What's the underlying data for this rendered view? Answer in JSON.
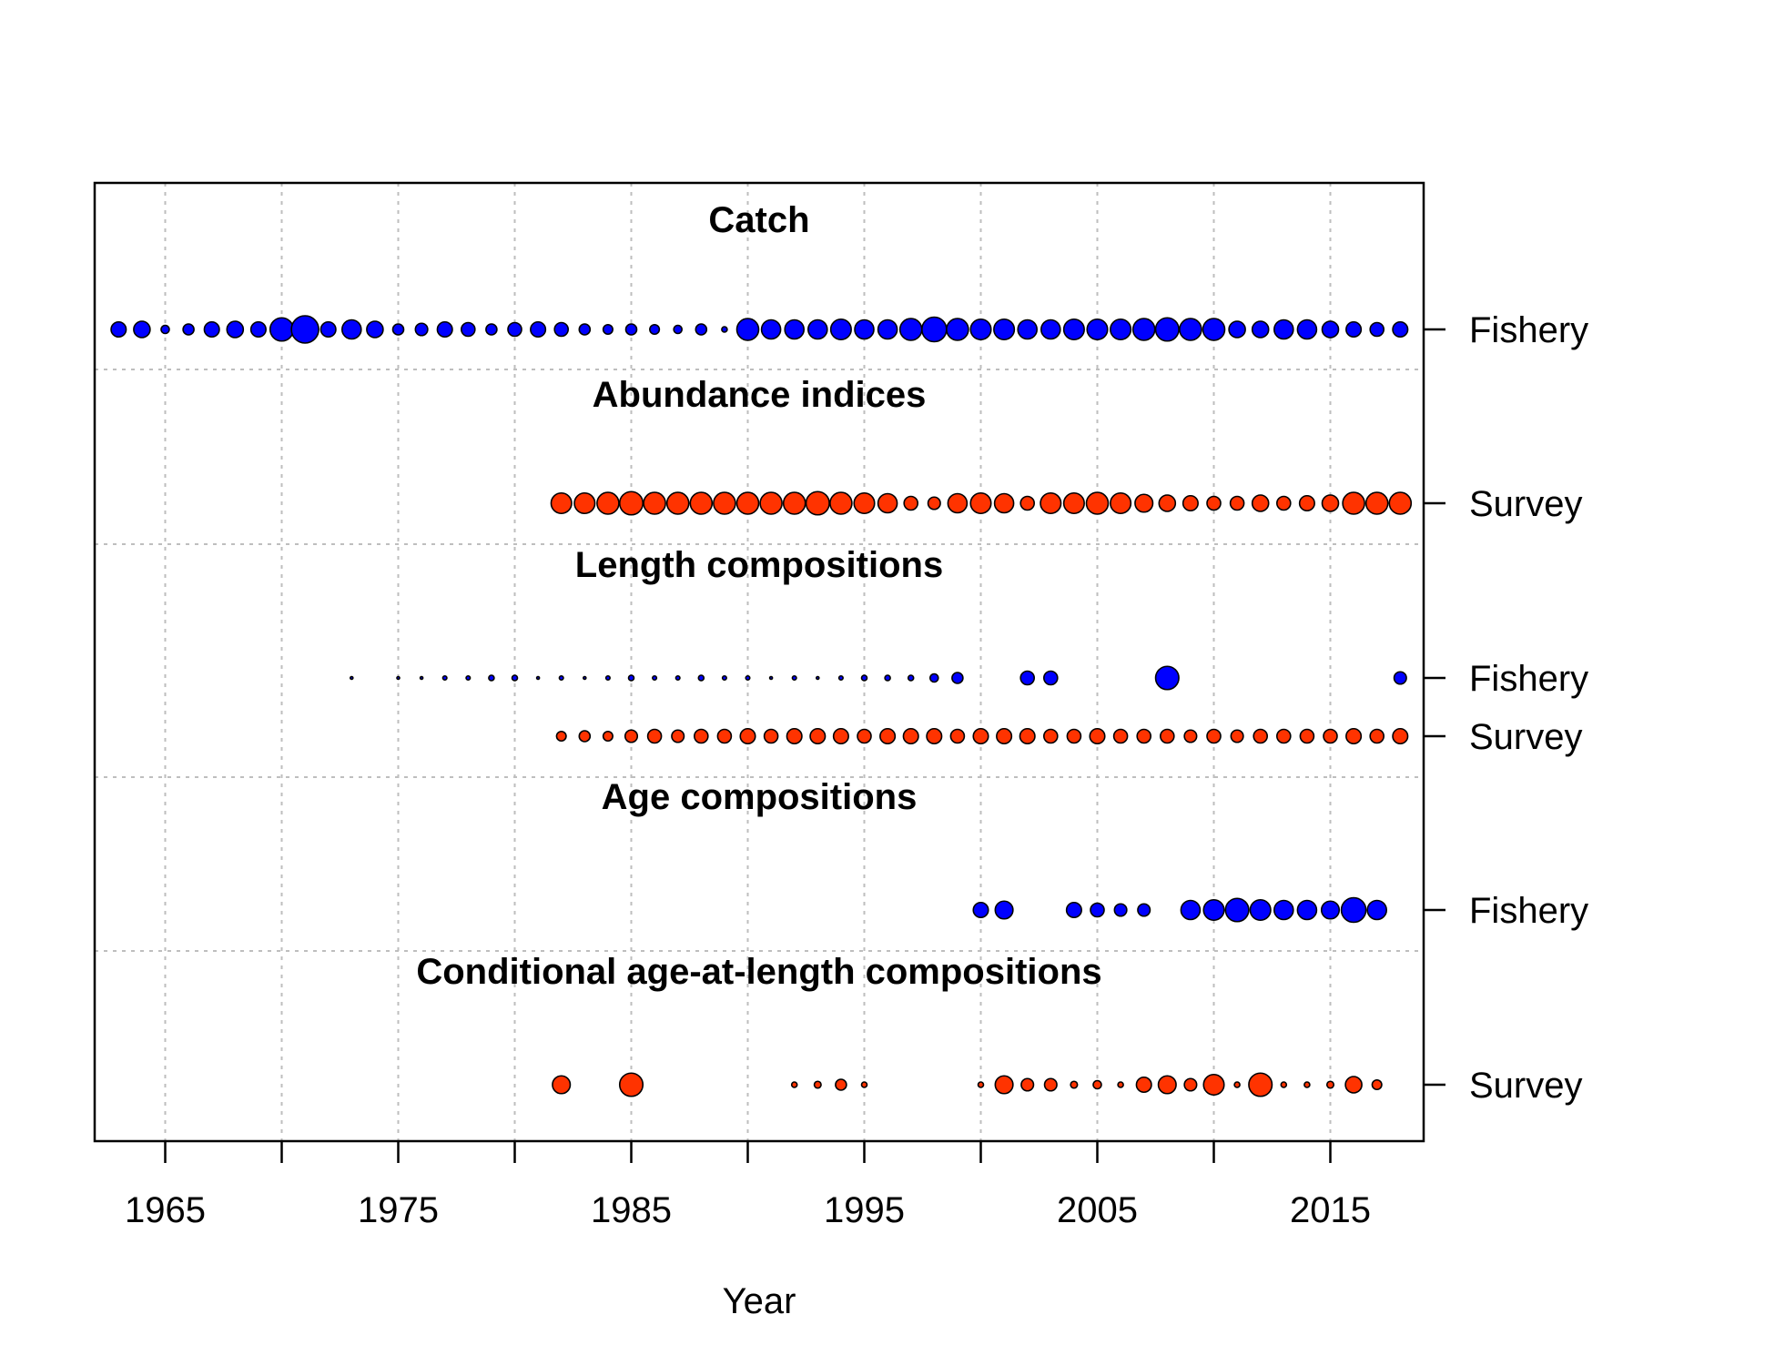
{
  "chart_data": {
    "type": "scatter",
    "xlabel": "Year",
    "xlim": [
      1962,
      2019
    ],
    "x_ticks": [
      1965,
      1975,
      1985,
      1995,
      2005,
      2015
    ],
    "x_tick_labels": [
      "1965",
      "1975",
      "1985",
      "1995",
      "2005",
      "2015"
    ],
    "grid": true,
    "colors": {
      "Fishery": "#0000ff",
      "Survey": "#ff3300",
      "outline": "#000000",
      "grid": "#bebebe"
    },
    "sections": [
      {
        "title": "Catch",
        "rows": [
          {
            "label": "Fishery",
            "years": [
              1963,
              1964,
              1965,
              1966,
              1967,
              1968,
              1969,
              1970,
              1971,
              1972,
              1973,
              1974,
              1975,
              1976,
              1977,
              1978,
              1979,
              1980,
              1981,
              1982,
              1983,
              1984,
              1985,
              1986,
              1987,
              1988,
              1989,
              1990,
              1991,
              1992,
              1993,
              1994,
              1995,
              1996,
              1997,
              1998,
              1999,
              2000,
              2001,
              2002,
              2003,
              2004,
              2005,
              2006,
              2007,
              2008,
              2009,
              2010,
              2011,
              2012,
              2013,
              2014,
              2015,
              2016,
              2017,
              2018
            ],
            "sizes": [
              0.55,
              0.6,
              0.3,
              0.4,
              0.55,
              0.6,
              0.55,
              0.85,
              1.0,
              0.55,
              0.7,
              0.6,
              0.4,
              0.45,
              0.55,
              0.5,
              0.4,
              0.5,
              0.55,
              0.5,
              0.4,
              0.35,
              0.4,
              0.35,
              0.3,
              0.4,
              0.2,
              0.8,
              0.7,
              0.7,
              0.7,
              0.75,
              0.7,
              0.7,
              0.8,
              0.9,
              0.8,
              0.75,
              0.75,
              0.7,
              0.7,
              0.75,
              0.75,
              0.75,
              0.8,
              0.85,
              0.8,
              0.8,
              0.6,
              0.6,
              0.7,
              0.7,
              0.6,
              0.55,
              0.5,
              0.55
            ]
          }
        ]
      },
      {
        "title": "Abundance indices",
        "rows": [
          {
            "label": "Survey",
            "years": [
              1982,
              1983,
              1984,
              1985,
              1986,
              1987,
              1988,
              1989,
              1990,
              1991,
              1992,
              1993,
              1994,
              1995,
              1996,
              1997,
              1998,
              1999,
              2000,
              2001,
              2002,
              2003,
              2004,
              2005,
              2006,
              2007,
              2008,
              2009,
              2010,
              2011,
              2012,
              2013,
              2014,
              2015,
              2016,
              2017,
              2018
            ],
            "sizes": [
              0.75,
              0.75,
              0.8,
              0.85,
              0.8,
              0.8,
              0.8,
              0.8,
              0.8,
              0.8,
              0.8,
              0.85,
              0.8,
              0.75,
              0.7,
              0.5,
              0.45,
              0.7,
              0.75,
              0.7,
              0.5,
              0.75,
              0.75,
              0.8,
              0.75,
              0.65,
              0.6,
              0.55,
              0.5,
              0.5,
              0.6,
              0.5,
              0.55,
              0.6,
              0.8,
              0.8,
              0.8
            ]
          }
        ]
      },
      {
        "title": "Length compositions",
        "rows": [
          {
            "label": "Fishery",
            "years": [
              1973,
              1975,
              1976,
              1977,
              1978,
              1979,
              1980,
              1981,
              1982,
              1983,
              1984,
              1985,
              1986,
              1987,
              1988,
              1989,
              1990,
              1991,
              1992,
              1993,
              1994,
              1995,
              1996,
              1997,
              1998,
              1999,
              2002,
              2003,
              2008,
              2018
            ],
            "sizes": [
              0.1,
              0.1,
              0.1,
              0.15,
              0.15,
              0.2,
              0.2,
              0.1,
              0.15,
              0.1,
              0.15,
              0.2,
              0.15,
              0.15,
              0.2,
              0.15,
              0.15,
              0.1,
              0.15,
              0.1,
              0.15,
              0.2,
              0.2,
              0.2,
              0.3,
              0.4,
              0.5,
              0.5,
              0.85,
              0.45
            ]
          },
          {
            "label": "Survey",
            "years": [
              1982,
              1983,
              1984,
              1985,
              1986,
              1987,
              1988,
              1989,
              1990,
              1991,
              1992,
              1993,
              1994,
              1995,
              1996,
              1997,
              1998,
              1999,
              2000,
              2001,
              2002,
              2003,
              2004,
              2005,
              2006,
              2007,
              2008,
              2009,
              2010,
              2011,
              2012,
              2013,
              2014,
              2015,
              2016,
              2017,
              2018
            ],
            "sizes": [
              0.35,
              0.4,
              0.35,
              0.45,
              0.5,
              0.45,
              0.5,
              0.5,
              0.55,
              0.5,
              0.55,
              0.55,
              0.55,
              0.5,
              0.55,
              0.55,
              0.55,
              0.5,
              0.55,
              0.55,
              0.55,
              0.5,
              0.5,
              0.55,
              0.5,
              0.5,
              0.5,
              0.45,
              0.5,
              0.45,
              0.5,
              0.5,
              0.5,
              0.5,
              0.55,
              0.5,
              0.55
            ]
          }
        ]
      },
      {
        "title": "Age compositions",
        "rows": [
          {
            "label": "Fishery",
            "years": [
              2000,
              2001,
              2004,
              2005,
              2006,
              2007,
              2009,
              2010,
              2011,
              2012,
              2013,
              2014,
              2015,
              2016,
              2017
            ],
            "sizes": [
              0.55,
              0.65,
              0.55,
              0.5,
              0.45,
              0.45,
              0.7,
              0.75,
              0.85,
              0.75,
              0.7,
              0.7,
              0.65,
              0.9,
              0.7
            ]
          }
        ]
      },
      {
        "title": "Conditional age-at-length compositions",
        "rows": [
          {
            "label": "Survey",
            "years": [
              1982,
              1985,
              1992,
              1993,
              1994,
              1995,
              2000,
              2001,
              2002,
              2003,
              2004,
              2005,
              2006,
              2007,
              2008,
              2009,
              2010,
              2011,
              2012,
              2013,
              2014,
              2015,
              2016,
              2017
            ],
            "sizes": [
              0.65,
              0.85,
              0.2,
              0.25,
              0.4,
              0.2,
              0.2,
              0.65,
              0.45,
              0.45,
              0.25,
              0.3,
              0.2,
              0.55,
              0.65,
              0.45,
              0.75,
              0.2,
              0.85,
              0.2,
              0.2,
              0.25,
              0.6,
              0.35
            ]
          }
        ]
      }
    ]
  }
}
